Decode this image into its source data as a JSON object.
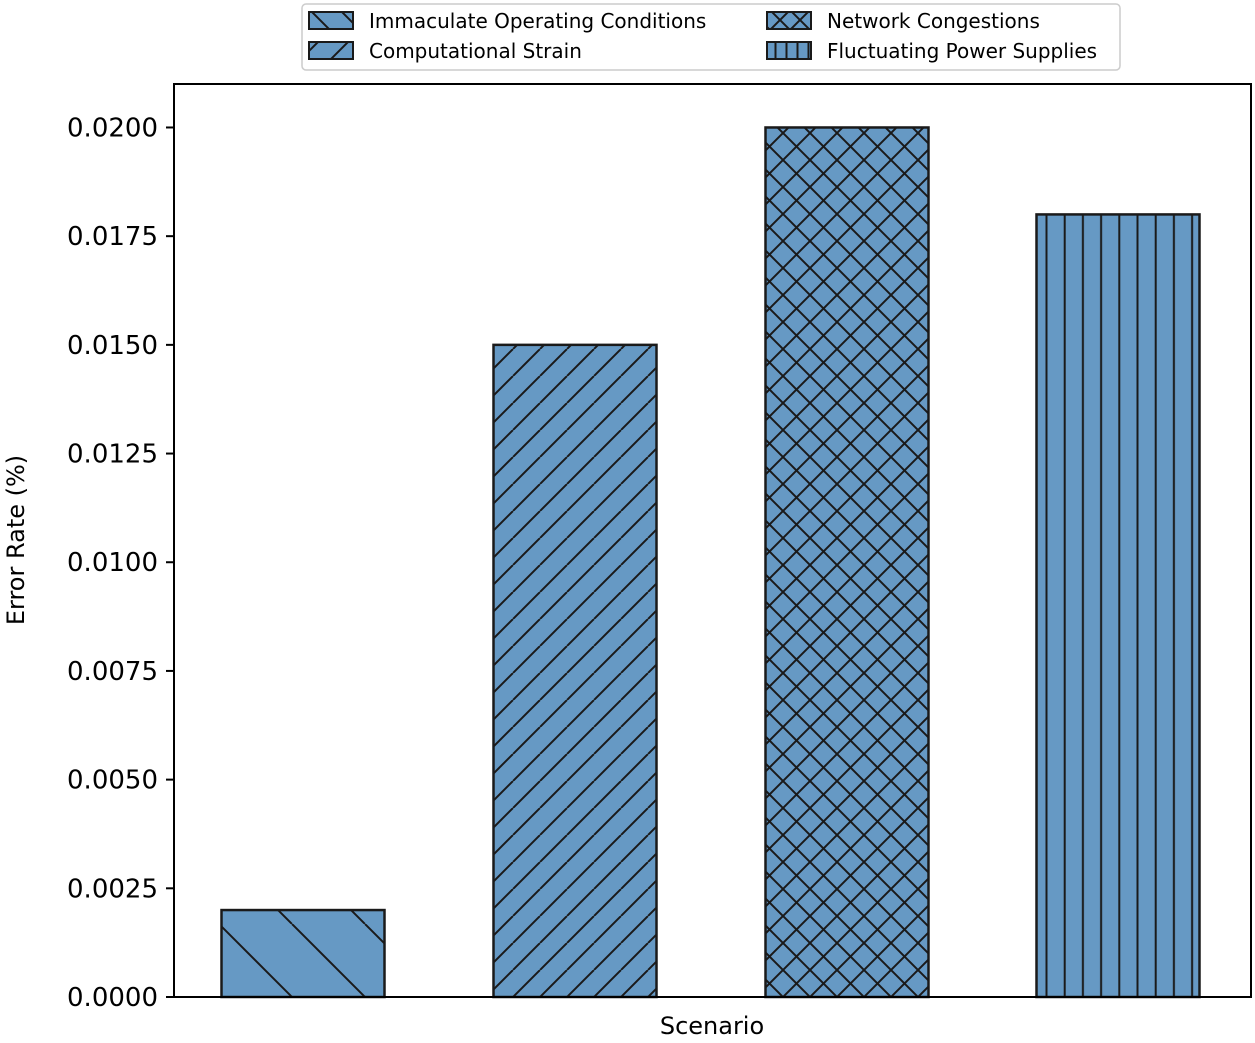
{
  "chart_data": {
    "type": "bar",
    "title": "",
    "xlabel": "Scenario",
    "ylabel": "Error Rate (%)",
    "ylim": [
      0,
      0.021
    ],
    "yticks": [
      "0.0000",
      "0.0025",
      "0.0050",
      "0.0075",
      "0.0100",
      "0.0125",
      "0.0150",
      "0.0175",
      "0.0200"
    ],
    "grid": false,
    "legend_position": "top-center",
    "bar_color": "#6699c4",
    "edge_color": "#1a1a1a",
    "categories": [
      "Immaculate Operating Conditions",
      "Computational Strain",
      "Network Congestions",
      "Fluctuating Power Supplies"
    ],
    "values": [
      0.002,
      0.015,
      0.02,
      0.018
    ],
    "hatches": [
      "backslash",
      "slash",
      "cross",
      "vertical"
    ],
    "legend": [
      {
        "label": "Immaculate Operating Conditions",
        "hatch": "backslash"
      },
      {
        "label": "Network Congestions",
        "hatch": "cross"
      },
      {
        "label": "Computational Strain",
        "hatch": "slash"
      },
      {
        "label": "Fluctuating Power Supplies",
        "hatch": "vertical"
      }
    ]
  }
}
